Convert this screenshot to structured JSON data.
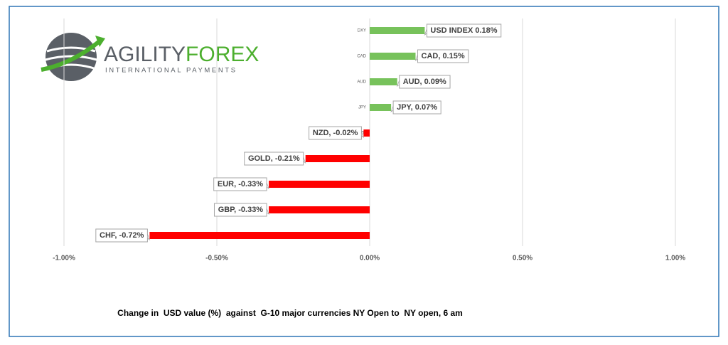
{
  "logo": {
    "name_part1": "AGILITY",
    "name_part2": "FOREX",
    "tagline": "INTERNATIONAL PAYMENTS"
  },
  "chart_data": {
    "type": "hbar",
    "caption": "Change in  USD value (%)  against  G-10 major currencies NY Open to  NY open, 6 am",
    "categories": [
      "DXY",
      "CAD",
      "AUD",
      "JPY",
      "NZD",
      "GOLD",
      "EUR",
      "GBP",
      "CHF"
    ],
    "values": [
      0.18,
      0.15,
      0.09,
      0.07,
      -0.02,
      -0.21,
      -0.33,
      -0.33,
      -0.72
    ],
    "value_labels": [
      "USD INDEX 0.18%",
      "CAD, 0.15%",
      "AUD, 0.09%",
      "JPY, 0.07%",
      "NZD, -0.02%",
      "GOLD, -0.21%",
      "EUR, -0.33%",
      "GBP, -0.33%",
      "CHF, -0.72%"
    ],
    "colors": [
      "#77c25b",
      "#77c25b",
      "#77c25b",
      "#77c25b",
      "#ff0000",
      "#ff0000",
      "#ff0000",
      "#ff0000",
      "#ff0000"
    ],
    "xlim": [
      -1,
      1
    ],
    "xticks": [
      {
        "value": -1,
        "label": "-1.00%"
      },
      {
        "value": -0.5,
        "label": "-0.50%"
      },
      {
        "value": 0,
        "label": "0.00%"
      },
      {
        "value": 0.5,
        "label": "0.50%"
      },
      {
        "value": 1,
        "label": "1.00%"
      }
    ],
    "grid": true
  }
}
